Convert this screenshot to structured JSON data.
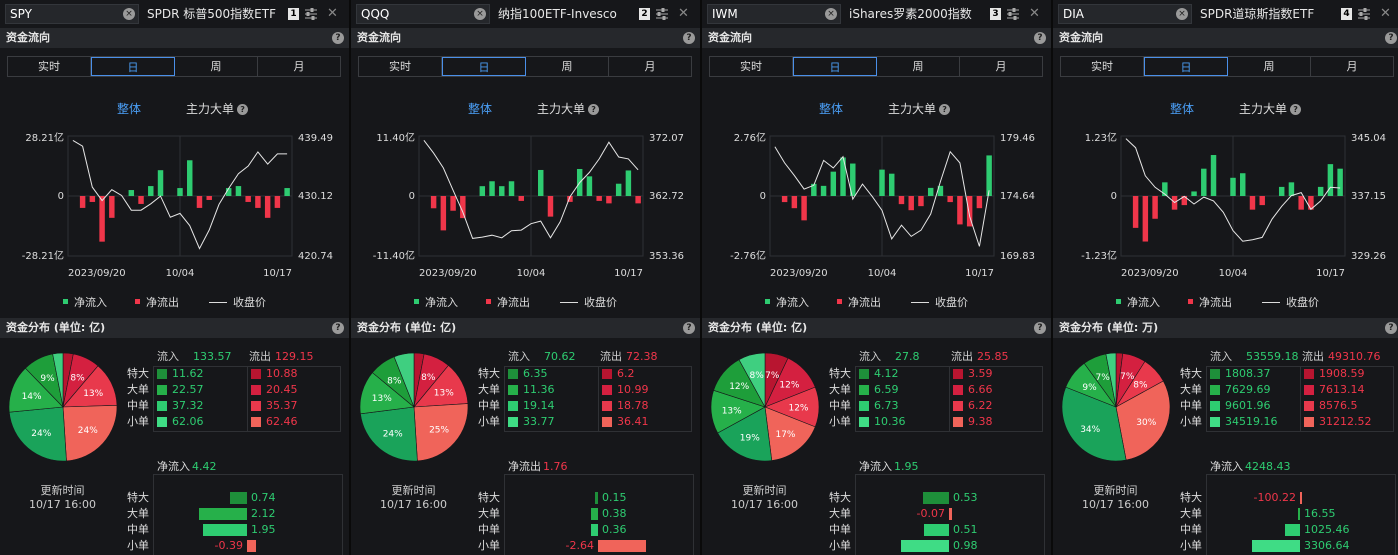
{
  "labels": {
    "section_flow": "资金流向",
    "section_dist_prefix": "资金分布 (单位: ",
    "tabs": [
      "实时",
      "日",
      "周",
      "月"
    ],
    "active_tab": 1,
    "mode_total": "整体",
    "mode_main": "主力大单",
    "legend_in": "净流入",
    "legend_out": "净流出",
    "legend_close": "收盘价",
    "inflow": "流入",
    "outflow": "流出",
    "cats": [
      "特大",
      "大单",
      "中单",
      "小单"
    ],
    "update_label": "更新时间",
    "update_time": "10/17 16:00",
    "dates": [
      "2023/09/20",
      "10/04",
      "10/17"
    ]
  },
  "colors": {
    "in": "#2ecc71",
    "out": "#f0364a",
    "pie_in": [
      "#1aa35a",
      "#26b04a",
      "#1e9e3a",
      "#3fcf80"
    ],
    "pie_out": [
      "#b81530",
      "#d42040",
      "#e8394c",
      "#f0645a"
    ],
    "sw_in": [
      "#1e8f3a",
      "#26b04a",
      "#2ecc71",
      "#3fdc85"
    ],
    "sw_out": [
      "#b81530",
      "#d42040",
      "#e8394c",
      "#f0645a"
    ]
  },
  "panels": [
    {
      "ticker": "SPY",
      "name": "SPDR 标普500指数ETF",
      "index": "1",
      "unit": "亿",
      "chart_data": {
        "type": "bar+line",
        "y_left_ticks": [
          "28.21亿",
          "0",
          "-28.21亿"
        ],
        "y_left_max": 28.21,
        "y_right_ticks": [
          "439.49",
          "430.12",
          "420.74"
        ],
        "y_right_range": [
          420.74,
          439.49
        ],
        "flows": [
          0,
          -6,
          -3,
          -23,
          -11,
          0,
          3,
          -4,
          5,
          13,
          0,
          4,
          18,
          -6,
          -2,
          0,
          4,
          5,
          -3,
          -6,
          -11,
          -6,
          4
        ],
        "close": [
          438.8,
          437.9,
          431.5,
          429.4,
          431.1,
          430.2,
          427.9,
          427.9,
          428.9,
          430.1,
          426.8,
          427.4,
          425.5,
          421.9,
          424.8,
          428.8,
          431.3,
          433.6,
          434.8,
          437.0,
          435.1,
          436.7,
          436.7
        ]
      },
      "totals": {
        "inflow": "133.57",
        "outflow": "129.15"
      },
      "table": {
        "in": [
          "11.62",
          "22.57",
          "37.32",
          "62.06"
        ],
        "out": [
          "10.88",
          "20.45",
          "35.37",
          "62.46"
        ]
      },
      "pie": {
        "out_pct": [
          3,
          8,
          13,
          24
        ],
        "in_pct": [
          24,
          14,
          9,
          3
        ],
        "labels_out": [
          "",
          "8%",
          "13%",
          "24%"
        ],
        "labels_in": [
          "24%",
          "14%",
          "9%",
          ""
        ]
      },
      "net": {
        "title_label": "净流入",
        "title_value": "4.42",
        "title_positive": true,
        "values": [
          0.74,
          2.12,
          1.95,
          -0.39
        ],
        "texts": [
          "0.74",
          "2.12",
          "1.95",
          "-0.39"
        ],
        "scale": 2.12
      }
    },
    {
      "ticker": "QQQ",
      "name": "纳指100ETF-Invesco",
      "index": "2",
      "unit": "亿",
      "chart_data": {
        "type": "bar+line",
        "y_left_ticks": [
          "11.40亿",
          "0",
          "-11.40亿"
        ],
        "y_left_max": 11.4,
        "y_right_ticks": [
          "372.07",
          "362.72",
          "353.36"
        ],
        "y_right_range": [
          353.36,
          372.07
        ],
        "flows": [
          0,
          -2.5,
          -7,
          -3,
          -4.5,
          0,
          2,
          3,
          2,
          3,
          -1,
          0,
          5.3,
          -4.2,
          0,
          -1.2,
          5.5,
          4,
          -1,
          -1.5,
          2.5,
          5.2,
          -1.5
        ],
        "close": [
          371.4,
          369.4,
          367.1,
          363.6,
          360.2,
          356.1,
          356.3,
          356.6,
          356.2,
          357.3,
          357.4,
          358.4,
          358.8,
          356.2,
          358.7,
          362.6,
          364.8,
          366.4,
          368.5,
          371.1,
          368.8,
          368.5,
          366.8
        ]
      },
      "totals": {
        "inflow": "70.62",
        "outflow": "72.38"
      },
      "table": {
        "in": [
          "6.35",
          "11.36",
          "19.14",
          "33.77"
        ],
        "out": [
          "6.2",
          "10.99",
          "18.78",
          "36.41"
        ]
      },
      "pie": {
        "out_pct": [
          3,
          8,
          13,
          25
        ],
        "in_pct": [
          24,
          13,
          8,
          6
        ],
        "labels_out": [
          "",
          "8%",
          "13%",
          "25%"
        ],
        "labels_in": [
          "24%",
          "13%",
          "8%",
          ""
        ]
      },
      "net": {
        "title_label": "净流出",
        "title_value": "1.76",
        "title_positive": false,
        "values": [
          0.15,
          0.38,
          0.36,
          -2.64
        ],
        "texts": [
          "0.15",
          "0.38",
          "0.36",
          "-2.64"
        ],
        "scale": 2.64
      }
    },
    {
      "ticker": "IWM",
      "name": "iShares罗素2000指数",
      "index": "3",
      "unit": "亿",
      "chart_data": {
        "type": "bar+line",
        "y_left_ticks": [
          "2.76亿",
          "0",
          "-2.76亿"
        ],
        "y_left_max": 2.76,
        "y_right_ticks": [
          "179.46",
          "174.64",
          "169.83"
        ],
        "y_right_range": [
          169.83,
          179.46
        ],
        "flows": [
          0,
          -0.3,
          -0.6,
          -1.2,
          0.6,
          0.5,
          1.2,
          1.9,
          1.6,
          0,
          0,
          1.3,
          1.1,
          -0.4,
          -0.7,
          -0.5,
          0.4,
          0.5,
          -0.3,
          -1.4,
          -1.5,
          -0.6,
          2.0
        ],
        "close": [
          178.6,
          177.3,
          176.3,
          175.2,
          175.5,
          177.5,
          176.9,
          177.8,
          174.4,
          175.6,
          174.6,
          173.5,
          171.2,
          172.3,
          171.4,
          171.9,
          173.2,
          175.8,
          178.2,
          177.3,
          173.0,
          170.6,
          175.1
        ]
      },
      "totals": {
        "inflow": "27.8",
        "outflow": "25.85"
      },
      "table": {
        "in": [
          "4.12",
          "6.59",
          "6.73",
          "10.36"
        ],
        "out": [
          "3.59",
          "6.66",
          "6.22",
          "9.38"
        ]
      },
      "pie": {
        "out_pct": [
          7,
          12,
          12,
          17
        ],
        "in_pct": [
          19,
          13,
          12,
          8
        ],
        "labels_out": [
          "7%",
          "12%",
          "12%",
          "17%"
        ],
        "labels_in": [
          "19%",
          "13%",
          "12%",
          "8%"
        ]
      },
      "net": {
        "title_label": "净流入",
        "title_value": "1.95",
        "title_positive": true,
        "values": [
          0.53,
          -0.07,
          0.51,
          0.98
        ],
        "texts": [
          "0.53",
          "-0.07",
          "0.51",
          "0.98"
        ],
        "scale": 0.98
      }
    },
    {
      "ticker": "DIA",
      "name": "SPDR道琼斯指数ETF",
      "index": "4",
      "unit": "万",
      "chart_data": {
        "type": "bar+line",
        "y_left_ticks": [
          "1.23亿",
          "0",
          "-1.23亿"
        ],
        "y_left_max": 1.23,
        "y_right_ticks": [
          "345.04",
          "337.15",
          "329.26"
        ],
        "y_right_range": [
          329.26,
          345.04
        ],
        "flows": [
          0,
          -0.7,
          -1.0,
          -0.5,
          0.3,
          -0.3,
          -0.2,
          0.1,
          0.6,
          0.9,
          0,
          0.4,
          0.5,
          -0.3,
          -0.2,
          0,
          0.2,
          0.3,
          -0.3,
          -0.3,
          0.2,
          0.7,
          0.6
        ],
        "close": [
          344.7,
          343.5,
          339.8,
          338.3,
          337.4,
          336.3,
          337.1,
          336.1,
          337.0,
          336.5,
          335.0,
          332.6,
          331.2,
          331.4,
          331.7,
          334.1,
          335.8,
          337.2,
          337.6,
          335.4,
          336.5,
          338.3,
          338.2
        ]
      },
      "totals": {
        "inflow": "53559.18",
        "outflow": "49310.76"
      },
      "table": {
        "in": [
          "1808.37",
          "7629.69",
          "9601.96",
          "34519.16"
        ],
        "out": [
          "1908.59",
          "7613.14",
          "8576.5",
          "31212.52"
        ]
      },
      "pie": {
        "out_pct": [
          2,
          7,
          8,
          30
        ],
        "in_pct": [
          34,
          9,
          7,
          3
        ],
        "labels_out": [
          "",
          "7%",
          "8%",
          "30%"
        ],
        "labels_in": [
          "34%",
          "9%",
          "7%",
          ""
        ]
      },
      "net": {
        "title_label": "净流入",
        "title_value": "4248.43",
        "title_positive": true,
        "values": [
          -100.22,
          16.55,
          1025.46,
          3306.64
        ],
        "texts": [
          "-100.22",
          "16.55",
          "1025.46",
          "3306.64"
        ],
        "scale": 3306.64
      }
    }
  ]
}
